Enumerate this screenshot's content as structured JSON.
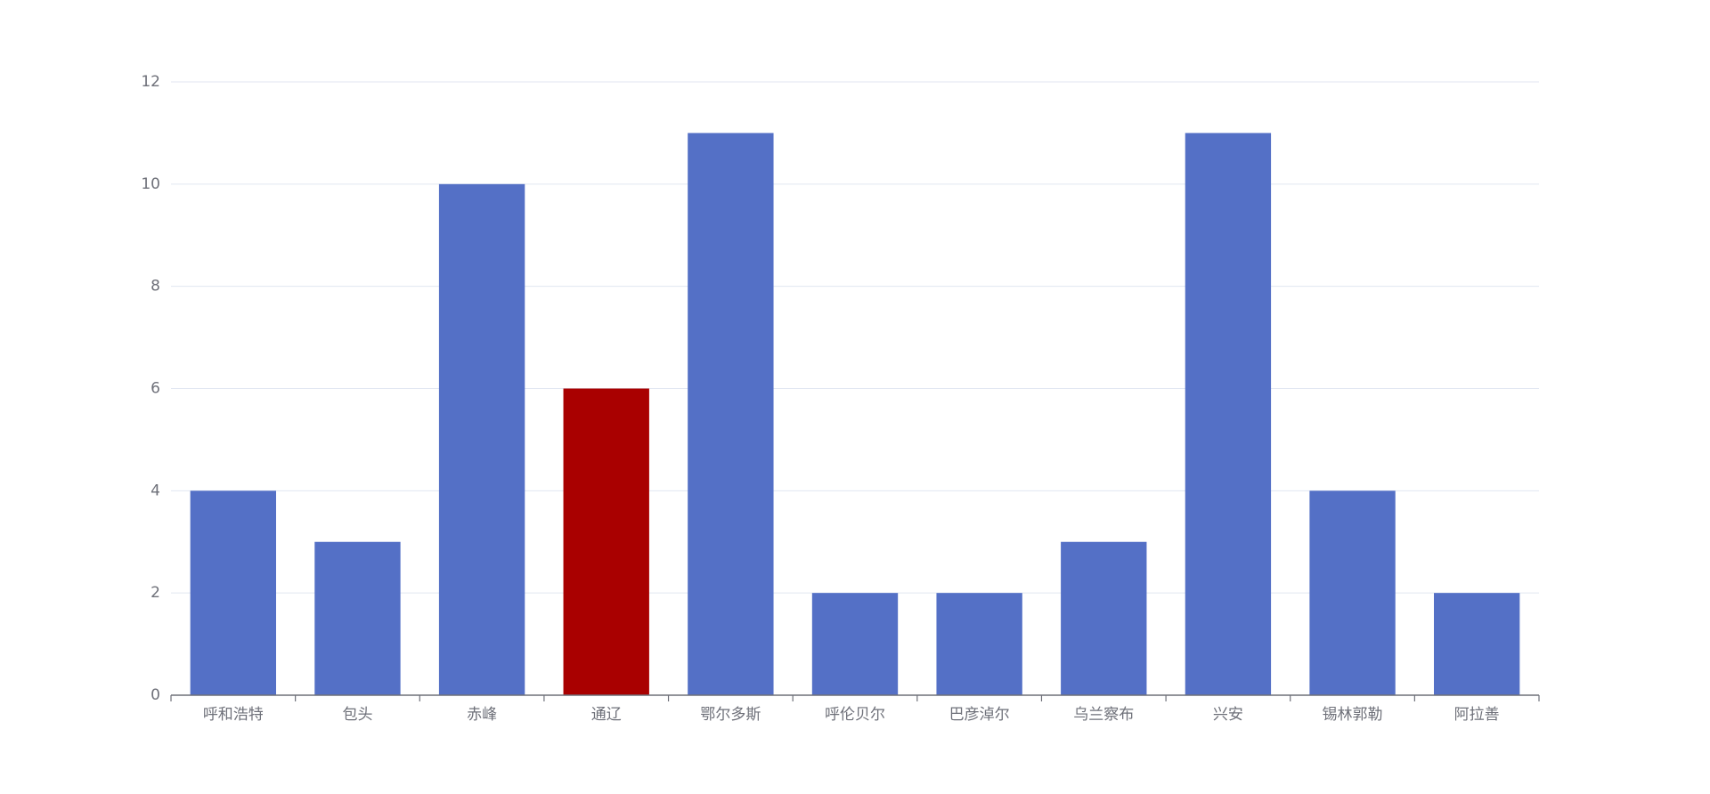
{
  "chart_data": {
    "type": "bar",
    "categories": [
      "呼和浩特",
      "包头",
      "赤峰",
      "通辽",
      "鄂尔多斯",
      "呼伦贝尔",
      "巴彦淖尔",
      "乌兰察布",
      "兴安",
      "锡林郭勒",
      "阿拉善"
    ],
    "values": [
      4,
      3,
      10,
      6,
      11,
      2,
      2,
      3,
      11,
      4,
      2
    ],
    "colors": [
      "#5470c6",
      "#5470c6",
      "#5470c6",
      "#a90000",
      "#5470c6",
      "#5470c6",
      "#5470c6",
      "#5470c6",
      "#5470c6",
      "#5470c6",
      "#5470c6"
    ],
    "ylim": [
      0,
      12
    ],
    "yticks": [
      0,
      2,
      4,
      6,
      8,
      10,
      12
    ],
    "grid": true
  }
}
